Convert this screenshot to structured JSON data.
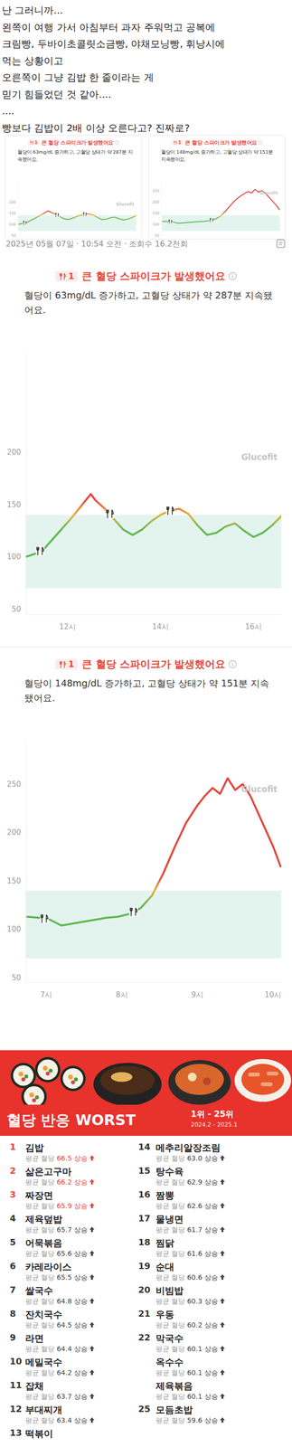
{
  "post": {
    "lines": [
      "난 그러니까...",
      "왼쪽이 여행 가서 아침부터 과자 주워먹고 공복에",
      "크림빵, 두바이초콜릿소금빵, 야채모닝빵, 휘낭시에",
      "먹는 상황이고",
      "오른쪽이 그냥 김밥 한 줄이라는 게",
      "믿기 힘들었던 것 같아....",
      "....",
      "빵보다 김밥이 2배 이상 오른다고? 진짜로?"
    ],
    "meta": "2025년 05월 07일 · 10:54 오전 · 조회수 16.2천회"
  },
  "chart_data": [
    {
      "type": "line",
      "badge": "1",
      "title": "큰 혈당 스파이크가 발생했어요",
      "subtitle": "혈당이 63mg/dL 증가하고, 고혈당 상태가 약 287분 지속됐어요.",
      "watermark": "Glucofit",
      "x": [
        11.1,
        11.3,
        11.5,
        11.7,
        11.9,
        12.1,
        12.3,
        12.5,
        12.6,
        12.8,
        13.0,
        13.2,
        13.4,
        13.6,
        13.8,
        14.0,
        14.2,
        14.4,
        14.6,
        14.8,
        15.0,
        15.2,
        15.4,
        15.6,
        15.8,
        16.0,
        16.2,
        16.4,
        16.6
      ],
      "values": [
        100,
        103,
        108,
        118,
        128,
        138,
        149,
        160,
        154,
        146,
        136,
        126,
        121,
        126,
        134,
        140,
        144,
        146,
        141,
        130,
        121,
        123,
        129,
        132,
        125,
        119,
        123,
        130,
        139
      ],
      "xlim": [
        11.1,
        16.6
      ],
      "xticks": [
        {
          "value": 12,
          "label": "12시"
        },
        {
          "value": 14,
          "label": "14시"
        },
        {
          "value": 16,
          "label": "16시"
        }
      ],
      "ylim": [
        45,
        295
      ],
      "yticks": [
        50,
        100,
        150,
        200
      ],
      "grid": false,
      "target_range": [
        70,
        140
      ],
      "meals": [
        11.4,
        12.9,
        14.2
      ],
      "color_stops": [
        {
          "value": 125,
          "color": "#5db84f"
        },
        {
          "value": 140,
          "color": "#eab03a"
        },
        {
          "value": 155,
          "color": "#e4453c"
        }
      ]
    },
    {
      "type": "line",
      "badge": "1",
      "title": "큰 혈당 스파이크가 발생했어요",
      "subtitle": "혈당이 148mg/dL 증가하고, 고혈당 상태가 약 151분 지속됐어요.",
      "watermark": "Glucofit",
      "x": [
        6.75,
        6.9,
        7.05,
        7.2,
        7.35,
        7.5,
        7.65,
        7.8,
        7.95,
        8.1,
        8.25,
        8.4,
        8.55,
        8.7,
        8.85,
        9.0,
        9.1,
        9.2,
        9.3,
        9.4,
        9.5,
        9.6,
        9.7,
        9.85,
        10.0,
        10.1
      ],
      "values": [
        113,
        112,
        110,
        104,
        106,
        108,
        110,
        112,
        113,
        116,
        122,
        135,
        158,
        185,
        210,
        228,
        238,
        246,
        240,
        256,
        244,
        250,
        238,
        212,
        186,
        165
      ],
      "xlim": [
        6.73,
        10.11
      ],
      "xticks": [
        {
          "value": 7,
          "label": "7시"
        },
        {
          "value": 8,
          "label": "8시"
        },
        {
          "value": 9,
          "label": "9시"
        },
        {
          "value": 10,
          "label": "10시"
        }
      ],
      "ylim": [
        45,
        295
      ],
      "yticks": [
        50,
        100,
        150,
        200,
        250
      ],
      "grid": false,
      "target_range": [
        70,
        140
      ],
      "meals": [
        6.97,
        8.15
      ],
      "color_stops": [
        {
          "value": 125,
          "color": "#5db84f"
        },
        {
          "value": 140,
          "color": "#eab03a"
        },
        {
          "value": 155,
          "color": "#e4453c"
        }
      ]
    }
  ],
  "ranking": {
    "title": "혈당 반응 WORST",
    "range_label": "1위 - 25위",
    "period": "2024.2 - 2025.1",
    "prefix": "평균 혈당",
    "suffix": "상승",
    "items": [
      {
        "rank": 1,
        "name": "김밥",
        "value": "66.5",
        "highlight": true
      },
      {
        "rank": 2,
        "name": "삶은고구마",
        "value": "66.2",
        "highlight": true
      },
      {
        "rank": 3,
        "name": "짜장면",
        "value": "65.9",
        "highlight": true
      },
      {
        "rank": 4,
        "name": "제육덮밥",
        "value": "65.7",
        "highlight": false
      },
      {
        "rank": 5,
        "name": "어묵볶음",
        "value": "65.6",
        "highlight": false
      },
      {
        "rank": 6,
        "name": "카레라이스",
        "value": "65.5",
        "highlight": false
      },
      {
        "rank": 7,
        "name": "쌀국수",
        "value": "64.8",
        "highlight": false
      },
      {
        "rank": 8,
        "name": "잔치국수",
        "value": "64.5",
        "highlight": false
      },
      {
        "rank": 9,
        "name": "라면",
        "value": "64.4",
        "highlight": false
      },
      {
        "rank": 10,
        "name": "메밀국수",
        "value": "64.2",
        "highlight": false
      },
      {
        "rank": 11,
        "name": "잡채",
        "value": "63.7",
        "highlight": false
      },
      {
        "rank": 12,
        "name": "부대찌개",
        "value": "63.4",
        "highlight": false
      },
      {
        "rank": 13,
        "name": "떡볶이",
        "highlight": false
      },
      {
        "rank": 14,
        "name": "메추리알장조림",
        "value": "63.0",
        "highlight": false
      },
      {
        "rank": 15,
        "name": "탕수육",
        "value": "62.9",
        "highlight": false
      },
      {
        "rank": 16,
        "name": "짬뽕",
        "value": "62.6",
        "highlight": false
      },
      {
        "rank": 17,
        "name": "물냉면",
        "value": "61.7",
        "highlight": false
      },
      {
        "rank": 18,
        "name": "찜닭",
        "value": "61.6",
        "highlight": false
      },
      {
        "rank": 19,
        "name": "순대",
        "value": "60.6",
        "highlight": false
      },
      {
        "rank": 20,
        "name": "비빔밥",
        "value": "60.3",
        "highlight": false
      },
      {
        "rank": 21,
        "name": "우동",
        "value": "60.2",
        "highlight": false
      },
      {
        "rank": 22,
        "name": "막국수",
        "value": "60.1",
        "highlight": false
      },
      {
        "rank": null,
        "name": "옥수수",
        "value": "60.1",
        "highlight": false
      },
      {
        "rank": null,
        "name": "제육볶음",
        "value": "60.1",
        "highlight": false
      },
      {
        "rank": 25,
        "name": "모듬초밥",
        "value": "59.6",
        "highlight": false
      }
    ]
  }
}
